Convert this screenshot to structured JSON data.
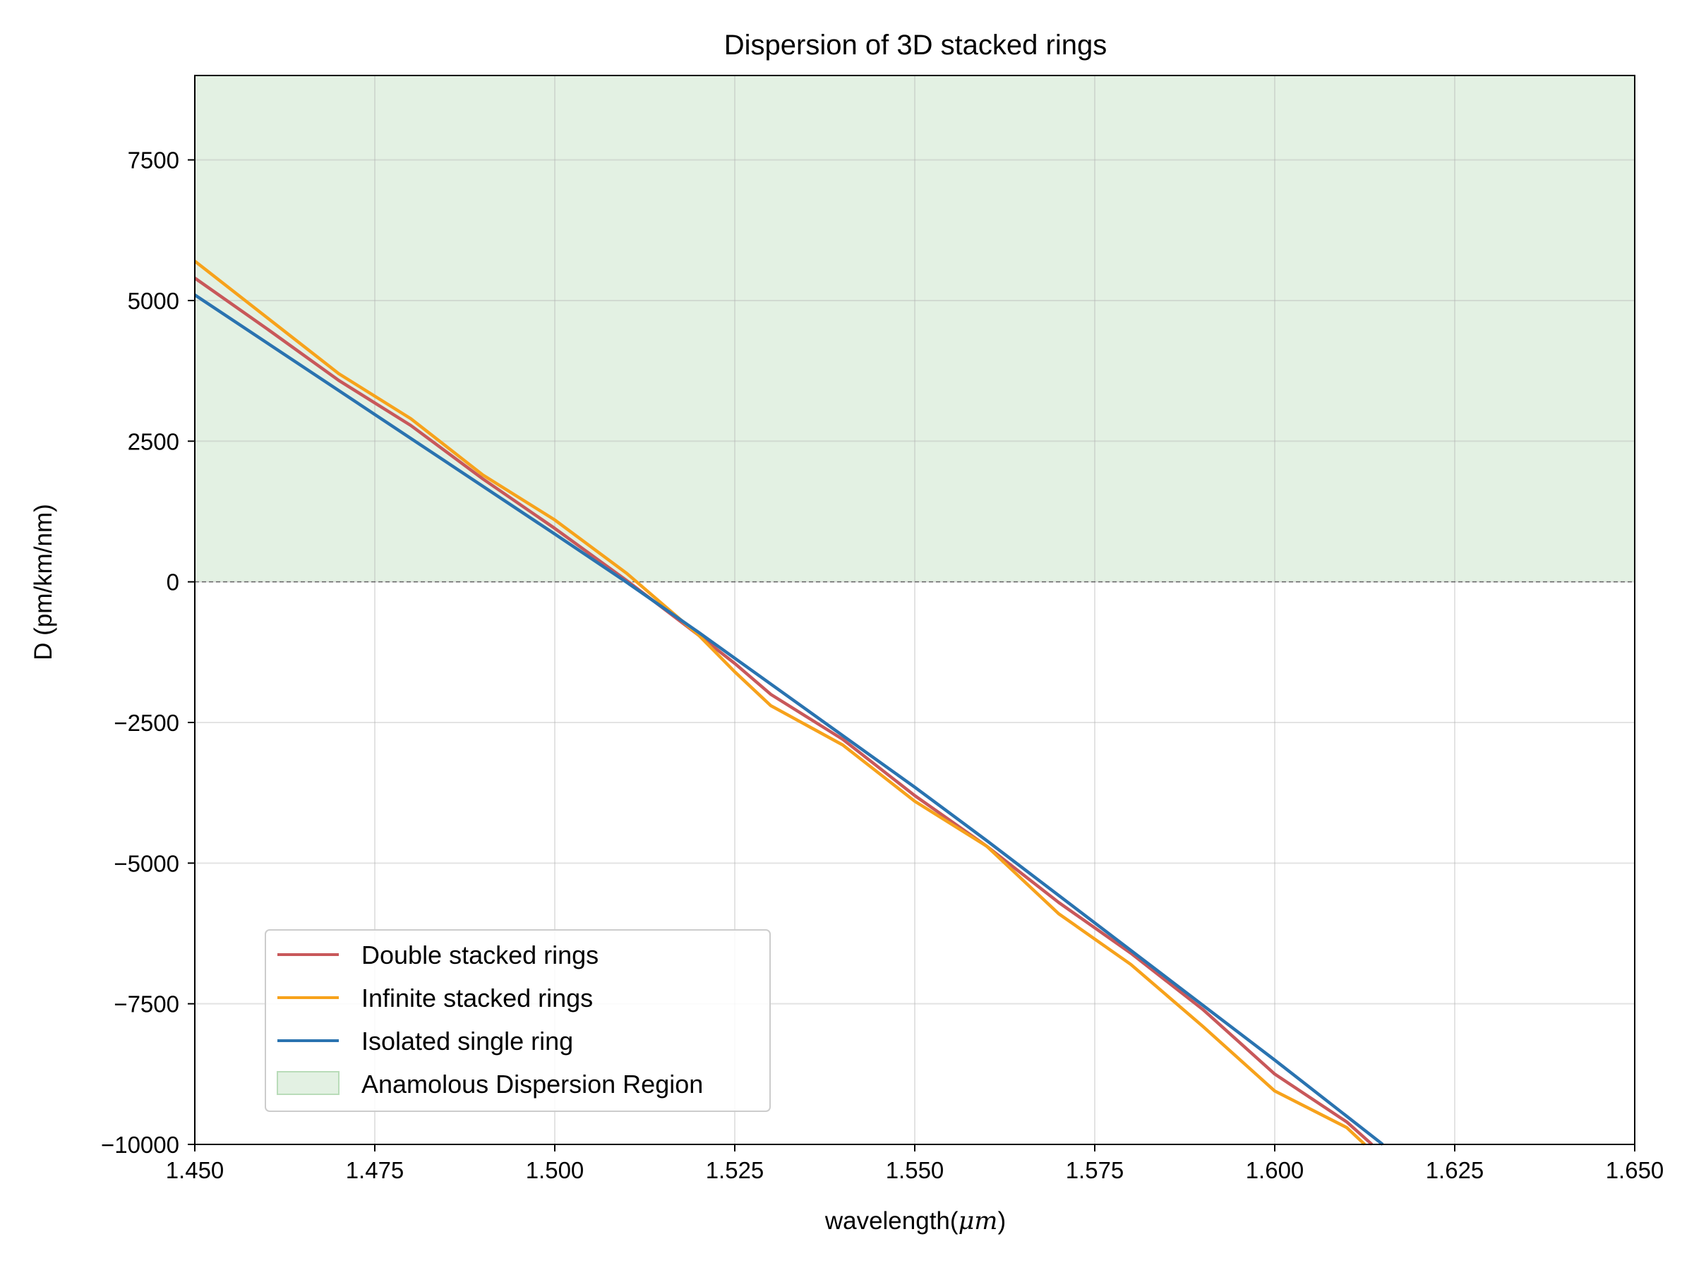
{
  "chart_data": {
    "type": "line",
    "title": "Dispersion of 3D stacked rings",
    "xlabel": "wavelength(",
    "xlabel_math": "μm",
    "xlabel_end": ")",
    "ylabel": "D (pm/km/nm)",
    "xlim": [
      1.45,
      1.65
    ],
    "ylim": [
      -10000,
      9000
    ],
    "xticks": [
      1.45,
      1.475,
      1.5,
      1.525,
      1.55,
      1.575,
      1.6,
      1.625,
      1.65
    ],
    "xtick_labels": [
      "1.450",
      "1.475",
      "1.500",
      "1.525",
      "1.550",
      "1.575",
      "1.600",
      "1.625",
      "1.650"
    ],
    "yticks": [
      -10000,
      -7500,
      -5000,
      -2500,
      0,
      2500,
      5000,
      7500
    ],
    "ytick_labels": [
      "−10000",
      "−7500",
      "−5000",
      "−2500",
      "0",
      "2500",
      "5000",
      "7500"
    ],
    "grid": true,
    "shaded_region": {
      "name": "Anamolous Dispersion Region",
      "y_from": 0,
      "y_to": 9000,
      "color": "#e3f1e3"
    },
    "zero_line": {
      "y": 0,
      "style": "dashed"
    },
    "legend": {
      "placement": "lower-left"
    },
    "series": [
      {
        "name": "Double stacked rings",
        "color": "#c8585a",
        "x": [
          1.45,
          1.46,
          1.47,
          1.48,
          1.49,
          1.5,
          1.51,
          1.52,
          1.525,
          1.53,
          1.54,
          1.55,
          1.56,
          1.57,
          1.58,
          1.59,
          1.6,
          1.61,
          1.6135
        ],
        "y": [
          5400,
          4500,
          3580,
          2780,
          1830,
          950,
          20,
          -950,
          -1450,
          -2000,
          -2800,
          -3800,
          -4700,
          -5700,
          -6600,
          -7600,
          -8750,
          -9600,
          -10000
        ]
      },
      {
        "name": "Infinite stacked rings",
        "color": "#f7a21b",
        "x": [
          1.45,
          1.46,
          1.47,
          1.48,
          1.49,
          1.5,
          1.51,
          1.52,
          1.525,
          1.53,
          1.54,
          1.55,
          1.56,
          1.57,
          1.58,
          1.59,
          1.6,
          1.61,
          1.6125
        ],
        "y": [
          5700,
          4700,
          3700,
          2900,
          1900,
          1100,
          150,
          -950,
          -1600,
          -2200,
          -2900,
          -3900,
          -4700,
          -5900,
          -6800,
          -7900,
          -9050,
          -9700,
          -10000
        ]
      },
      {
        "name": "Isolated single ring",
        "color": "#2a73b0",
        "x": [
          1.45,
          1.5,
          1.51,
          1.52,
          1.55,
          1.56,
          1.6,
          1.615
        ],
        "y": [
          5100,
          850,
          -10,
          -900,
          -3650,
          -4600,
          -8500,
          -10000
        ]
      }
    ]
  }
}
